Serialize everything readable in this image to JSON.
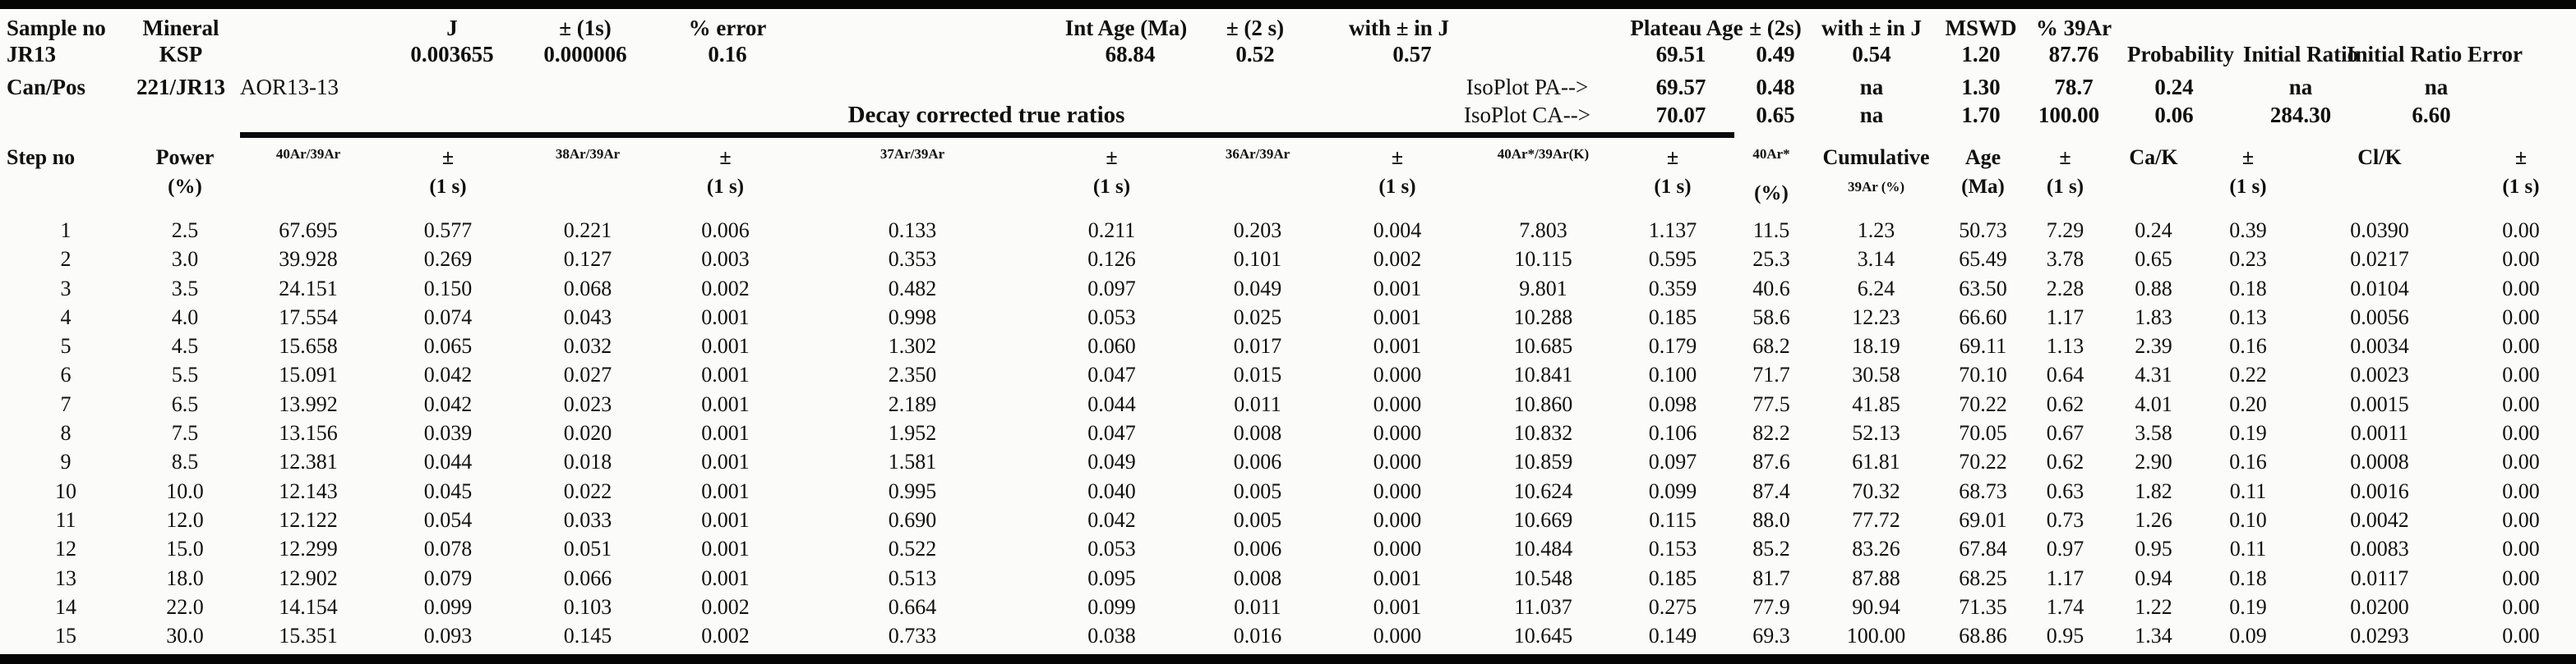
{
  "info": {
    "labels_row1": {
      "sample_no": "Sample no",
      "mineral": "Mineral",
      "j": "J",
      "pm_1s": "± (1s)",
      "pct_error": "% error",
      "int_age": "Int Age (Ma)",
      "pm_2s": "± (2 s)",
      "with_pm_in_j": "with ± in J",
      "plateau_age": "Plateau Age",
      "plateau_pm_2s": "± (2s)",
      "plateau_with_pm_in_j": "with ± in J",
      "mswd": "MSWD",
      "pct_39ar": "% 39Ar"
    },
    "sample_row": {
      "sample_no": "JR13",
      "mineral": "KSP",
      "j": "0.003655",
      "j_pm": "0.000006",
      "j_pct_error": "0.16",
      "int_age": "68.84",
      "int_age_pm": "0.52",
      "int_age_with_j": "0.57",
      "plateau_age": "69.51",
      "plateau_pm": "0.49",
      "plateau_with_j": "0.54",
      "mswd": "1.20",
      "pct_39ar": "87.76",
      "probability_label": "Probability",
      "initial_ratio_label": "Initial Ratio",
      "initial_ratio_error_label": "Initial Ratio Error"
    },
    "canpos_row": {
      "label": "Can/Pos",
      "canpos": "221/JR13",
      "irradiation": "AOR13-13",
      "isoplot_pa_label": "IsoPlot PA-->",
      "age": "69.57",
      "pm": "0.48",
      "with_j": "na",
      "mswd": "1.30",
      "pct_39ar": "78.7",
      "probability": "0.24",
      "initial_ratio": "na",
      "initial_ratio_error": "na"
    },
    "decay_row": {
      "decay_title": "Decay corrected true ratios",
      "isoplot_ca_label": "IsoPlot CA-->",
      "age": "70.07",
      "pm": "0.65",
      "with_j": "na",
      "mswd": "1.70",
      "pct_39ar": "100.00",
      "probability": "0.06",
      "initial_ratio": "284.30",
      "initial_ratio_error": "6.60"
    }
  },
  "table": {
    "columns": [
      {
        "l1": "Step no",
        "l2": ""
      },
      {
        "l1": "Power",
        "l2": "(%)"
      },
      {
        "l1": "40Ar/39Ar",
        "l2": "",
        "small1": true
      },
      {
        "l1": "±",
        "l2": "(1 s)"
      },
      {
        "l1": "38Ar/39Ar",
        "l2": "",
        "small1": true
      },
      {
        "l1": "±",
        "l2": "(1 s)"
      },
      {
        "l1": "37Ar/39Ar",
        "l2": "",
        "small1": true
      },
      {
        "l1": "±",
        "l2": "(1 s)"
      },
      {
        "l1": "36Ar/39Ar",
        "l2": "",
        "small1": true
      },
      {
        "l1": "±",
        "l2": "(1 s)"
      },
      {
        "l1": "40Ar*/39Ar(K)",
        "l2": "",
        "small1": true
      },
      {
        "l1": "±",
        "l2": "(1 s)"
      },
      {
        "l1": "40Ar*",
        "l2": "(%)",
        "small1": true
      },
      {
        "l1": "Cumulative",
        "l2": "39Ar (%)",
        "small2": true
      },
      {
        "l1": "Age",
        "l2": "(Ma)"
      },
      {
        "l1": "±",
        "l2": "(1 s)"
      },
      {
        "l1": "Ca/K",
        "l2": ""
      },
      {
        "l1": "±",
        "l2": "(1 s)"
      },
      {
        "l1": "Cl/K",
        "l2": ""
      },
      {
        "l1": "±",
        "l2": "(1 s)"
      }
    ],
    "rows": [
      [
        "1",
        "2.5",
        "67.695",
        "0.577",
        "0.221",
        "0.006",
        "0.133",
        "0.211",
        "0.203",
        "0.004",
        "7.803",
        "1.137",
        "11.5",
        "1.23",
        "50.73",
        "7.29",
        "0.24",
        "0.39",
        "0.0390",
        "0.00"
      ],
      [
        "2",
        "3.0",
        "39.928",
        "0.269",
        "0.127",
        "0.003",
        "0.353",
        "0.126",
        "0.101",
        "0.002",
        "10.115",
        "0.595",
        "25.3",
        "3.14",
        "65.49",
        "3.78",
        "0.65",
        "0.23",
        "0.0217",
        "0.00"
      ],
      [
        "3",
        "3.5",
        "24.151",
        "0.150",
        "0.068",
        "0.002",
        "0.482",
        "0.097",
        "0.049",
        "0.001",
        "9.801",
        "0.359",
        "40.6",
        "6.24",
        "63.50",
        "2.28",
        "0.88",
        "0.18",
        "0.0104",
        "0.00"
      ],
      [
        "4",
        "4.0",
        "17.554",
        "0.074",
        "0.043",
        "0.001",
        "0.998",
        "0.053",
        "0.025",
        "0.001",
        "10.288",
        "0.185",
        "58.6",
        "12.23",
        "66.60",
        "1.17",
        "1.83",
        "0.13",
        "0.0056",
        "0.00"
      ],
      [
        "5",
        "4.5",
        "15.658",
        "0.065",
        "0.032",
        "0.001",
        "1.302",
        "0.060",
        "0.017",
        "0.001",
        "10.685",
        "0.179",
        "68.2",
        "18.19",
        "69.11",
        "1.13",
        "2.39",
        "0.16",
        "0.0034",
        "0.00"
      ],
      [
        "6",
        "5.5",
        "15.091",
        "0.042",
        "0.027",
        "0.001",
        "2.350",
        "0.047",
        "0.015",
        "0.000",
        "10.841",
        "0.100",
        "71.7",
        "30.58",
        "70.10",
        "0.64",
        "4.31",
        "0.22",
        "0.0023",
        "0.00"
      ],
      [
        "7",
        "6.5",
        "13.992",
        "0.042",
        "0.023",
        "0.001",
        "2.189",
        "0.044",
        "0.011",
        "0.000",
        "10.860",
        "0.098",
        "77.5",
        "41.85",
        "70.22",
        "0.62",
        "4.01",
        "0.20",
        "0.0015",
        "0.00"
      ],
      [
        "8",
        "7.5",
        "13.156",
        "0.039",
        "0.020",
        "0.001",
        "1.952",
        "0.047",
        "0.008",
        "0.000",
        "10.832",
        "0.106",
        "82.2",
        "52.13",
        "70.05",
        "0.67",
        "3.58",
        "0.19",
        "0.0011",
        "0.00"
      ],
      [
        "9",
        "8.5",
        "12.381",
        "0.044",
        "0.018",
        "0.001",
        "1.581",
        "0.049",
        "0.006",
        "0.000",
        "10.859",
        "0.097",
        "87.6",
        "61.81",
        "70.22",
        "0.62",
        "2.90",
        "0.16",
        "0.0008",
        "0.00"
      ],
      [
        "10",
        "10.0",
        "12.143",
        "0.045",
        "0.022",
        "0.001",
        "0.995",
        "0.040",
        "0.005",
        "0.000",
        "10.624",
        "0.099",
        "87.4",
        "70.32",
        "68.73",
        "0.63",
        "1.82",
        "0.11",
        "0.0016",
        "0.00"
      ],
      [
        "11",
        "12.0",
        "12.122",
        "0.054",
        "0.033",
        "0.001",
        "0.690",
        "0.042",
        "0.005",
        "0.000",
        "10.669",
        "0.115",
        "88.0",
        "77.72",
        "69.01",
        "0.73",
        "1.26",
        "0.10",
        "0.0042",
        "0.00"
      ],
      [
        "12",
        "15.0",
        "12.299",
        "0.078",
        "0.051",
        "0.001",
        "0.522",
        "0.053",
        "0.006",
        "0.000",
        "10.484",
        "0.153",
        "85.2",
        "83.26",
        "67.84",
        "0.97",
        "0.95",
        "0.11",
        "0.0083",
        "0.00"
      ],
      [
        "13",
        "18.0",
        "12.902",
        "0.079",
        "0.066",
        "0.001",
        "0.513",
        "0.095",
        "0.008",
        "0.001",
        "10.548",
        "0.185",
        "81.7",
        "87.88",
        "68.25",
        "1.17",
        "0.94",
        "0.18",
        "0.0117",
        "0.00"
      ],
      [
        "14",
        "22.0",
        "14.154",
        "0.099",
        "0.103",
        "0.002",
        "0.664",
        "0.099",
        "0.011",
        "0.001",
        "11.037",
        "0.275",
        "77.9",
        "90.94",
        "71.35",
        "1.74",
        "1.22",
        "0.19",
        "0.0200",
        "0.00"
      ],
      [
        "15",
        "30.0",
        "15.351",
        "0.093",
        "0.145",
        "0.002",
        "0.733",
        "0.038",
        "0.016",
        "0.000",
        "10.645",
        "0.149",
        "69.3",
        "100.00",
        "68.86",
        "0.95",
        "1.34",
        "0.09",
        "0.0293",
        "0.00"
      ]
    ]
  }
}
